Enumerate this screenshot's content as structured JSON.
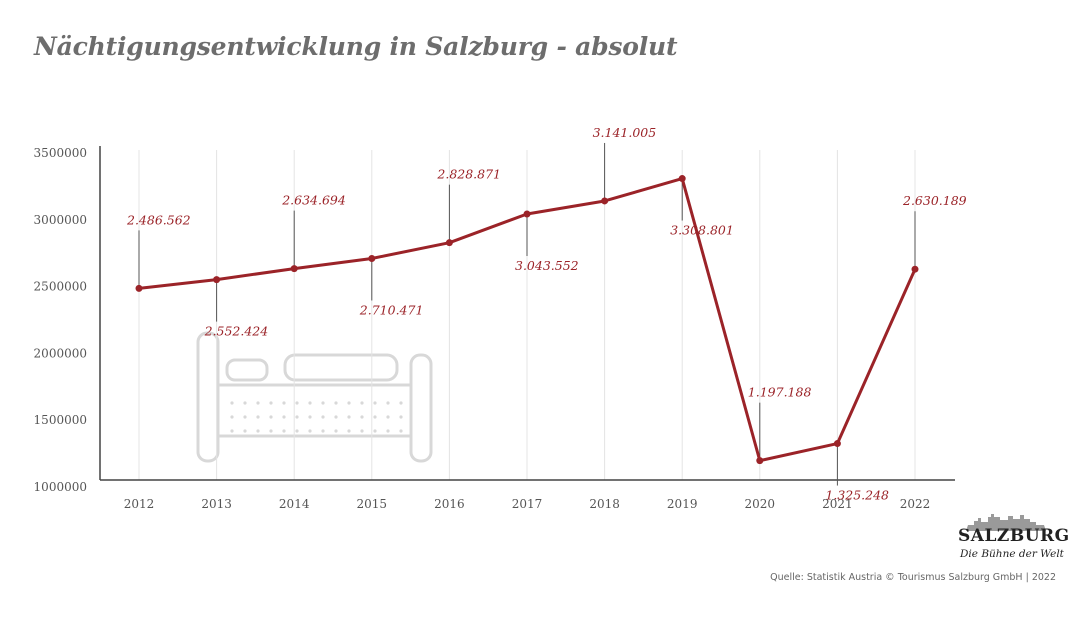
{
  "title": "Nächtigungsentwicklung in Salzburg - absolut",
  "source": "Quelle: Statistik Austria © Tourismus Salzburg GmbH | 2022",
  "logo": {
    "wordmark": "SALZBURG",
    "tagline": "Die Bühne der Welt"
  },
  "colors": {
    "series": "#9b2328",
    "axis": "#444444",
    "grid": "#e4e4e4",
    "title": "#6d6d6d",
    "illustration": "#d8d8d8"
  },
  "icons": {
    "background": "bed-illustration",
    "logo": "castle-silhouette-icon"
  },
  "chart_data": {
    "type": "line",
    "title": "Nächtigungsentwicklung in Salzburg - absolut",
    "xlabel": "",
    "ylabel": "",
    "categories": [
      "2012",
      "2013",
      "2014",
      "2015",
      "2016",
      "2017",
      "2018",
      "2019",
      "2020",
      "2021",
      "2022"
    ],
    "series": [
      {
        "values": [
          2486562,
          2552424,
          2634694,
          2710471,
          2828871,
          3043552,
          3141005,
          3308801,
          1197188,
          1325248,
          2630189
        ],
        "labels": [
          "2.486.562",
          "2.552.424",
          "2.634.694",
          "2.710.471",
          "2.828.871",
          "3.043.552",
          "3.141.005",
          "3.308.801",
          "1.197.188",
          "1.325.248",
          "2.630.189"
        ],
        "label_positions": [
          "above",
          "below",
          "above",
          "below",
          "above",
          "below",
          "above",
          "below",
          "above",
          "below",
          "above"
        ]
      }
    ],
    "y_ticks": [
      "1000000",
      "1500000",
      "2000000",
      "2500000",
      "3000000",
      "3500000"
    ],
    "y_tick_values": [
      1000000,
      1500000,
      2000000,
      2500000,
      3000000,
      3500000
    ],
    "ylim": [
      1000000,
      3500000
    ],
    "grid": "vertical",
    "legend": "none"
  }
}
